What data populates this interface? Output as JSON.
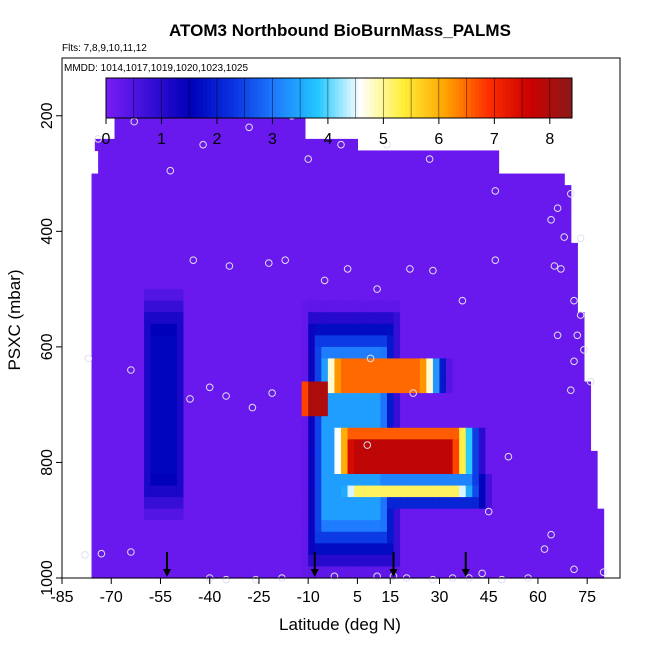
{
  "chart_data": {
    "type": "heatmap",
    "title": "ATOM3 Northbound BioBurnMass_PALMS",
    "flights_note": "Flts: 7,8,9,10,11,12",
    "dates_note": "MMDD: 1014,1017,1019,1020,1023,1025",
    "xlabel": "Latitude (deg N)",
    "ylabel": "PSXC (mbar)",
    "xlim": [
      -85,
      85
    ],
    "ylim": [
      1000,
      100
    ],
    "y_reversed": true,
    "x_ticks": [
      -85,
      -70,
      -55,
      -40,
      -25,
      -10,
      5,
      15,
      30,
      45,
      60,
      75
    ],
    "y_ticks": [
      200,
      400,
      600,
      800,
      1000
    ],
    "colorbar": {
      "range": [
        0,
        8.4
      ],
      "ticks": [
        0,
        1,
        2,
        3,
        4,
        5,
        6,
        7,
        8
      ],
      "colors": [
        "#7a1df5",
        "#3a0fd6",
        "#0000b8",
        "#0a33e0",
        "#1f7bff",
        "#22c8ff",
        "#ffffff",
        "#ffef3a",
        "#ffa500",
        "#ff3000",
        "#cc0000",
        "#8b1a1a"
      ]
    },
    "background_value": 0.2,
    "features": [
      {
        "lat_range": [
          -60,
          -48
        ],
        "p_range": [
          520,
          880
        ],
        "peak": 1.6
      },
      {
        "lat_range": [
          -9,
          16
        ],
        "p_range": [
          560,
          960
        ],
        "peak": 3.4
      },
      {
        "lat_range": [
          -12,
          -3
        ],
        "p_range": [
          660,
          720
        ],
        "peak": 8.0
      },
      {
        "lat_range": [
          -6,
          30
        ],
        "p_range": [
          620,
          680
        ],
        "peak": 6.5
      },
      {
        "lat_range": [
          -3,
          40
        ],
        "p_range": [
          740,
          830
        ],
        "peak": 7.8
      },
      {
        "lat_range": [
          -2,
          42
        ],
        "p_range": [
          830,
          870
        ],
        "peak": 5.2
      }
    ],
    "sample_points": [
      {
        "lat": -74,
        "p": 240
      },
      {
        "lat": -63,
        "p": 210
      },
      {
        "lat": -52,
        "p": 295
      },
      {
        "lat": -42,
        "p": 250
      },
      {
        "lat": -28,
        "p": 220
      },
      {
        "lat": -15,
        "p": 200
      },
      {
        "lat": -10,
        "p": 275
      },
      {
        "lat": 0,
        "p": 250
      },
      {
        "lat": 14,
        "p": 250
      },
      {
        "lat": 27,
        "p": 275
      },
      {
        "lat": 47,
        "p": 330
      },
      {
        "lat": 64,
        "p": 380
      },
      {
        "lat": 66,
        "p": 360
      },
      {
        "lat": 70,
        "p": 335
      },
      {
        "lat": 68,
        "p": 410
      },
      {
        "lat": 73,
        "p": 412
      },
      {
        "lat": -45,
        "p": 450
      },
      {
        "lat": -34,
        "p": 460
      },
      {
        "lat": -22,
        "p": 455
      },
      {
        "lat": -17,
        "p": 450
      },
      {
        "lat": -5,
        "p": 485
      },
      {
        "lat": 2,
        "p": 465
      },
      {
        "lat": 11,
        "p": 500
      },
      {
        "lat": 21,
        "p": 465
      },
      {
        "lat": 28,
        "p": 468
      },
      {
        "lat": 37,
        "p": 520
      },
      {
        "lat": 47,
        "p": 450
      },
      {
        "lat": 65,
        "p": 460
      },
      {
        "lat": 67,
        "p": 465
      },
      {
        "lat": 71,
        "p": 520
      },
      {
        "lat": 73,
        "p": 545
      },
      {
        "lat": 72,
        "p": 580
      },
      {
        "lat": 66,
        "p": 580
      },
      {
        "lat": 71,
        "p": 625
      },
      {
        "lat": 74,
        "p": 605
      },
      {
        "lat": -77,
        "p": 620
      },
      {
        "lat": -64,
        "p": 640
      },
      {
        "lat": -40,
        "p": 670
      },
      {
        "lat": -46,
        "p": 690
      },
      {
        "lat": -35,
        "p": 685
      },
      {
        "lat": -27,
        "p": 705
      },
      {
        "lat": -21,
        "p": 680
      },
      {
        "lat": 9,
        "p": 620
      },
      {
        "lat": 22,
        "p": 680
      },
      {
        "lat": 70,
        "p": 675
      },
      {
        "lat": 76,
        "p": 660
      },
      {
        "lat": 8,
        "p": 770
      },
      {
        "lat": 51,
        "p": 790
      },
      {
        "lat": 45,
        "p": 885
      },
      {
        "lat": 64,
        "p": 925
      },
      {
        "lat": 62,
        "p": 950
      },
      {
        "lat": -78,
        "p": 960
      },
      {
        "lat": -73,
        "p": 958
      },
      {
        "lat": -64,
        "p": 955
      },
      {
        "lat": -40,
        "p": 1000
      },
      {
        "lat": -35,
        "p": 1003
      },
      {
        "lat": -26,
        "p": 1003
      },
      {
        "lat": -18,
        "p": 1000
      },
      {
        "lat": -2,
        "p": 997
      },
      {
        "lat": 11,
        "p": 997
      },
      {
        "lat": 16,
        "p": 997
      },
      {
        "lat": 20,
        "p": 1000
      },
      {
        "lat": 28,
        "p": 1003
      },
      {
        "lat": 34,
        "p": 1000
      },
      {
        "lat": 39,
        "p": 1000
      },
      {
        "lat": 43,
        "p": 992
      },
      {
        "lat": 49,
        "p": 1003
      },
      {
        "lat": 57,
        "p": 1000
      },
      {
        "lat": 71,
        "p": 985
      },
      {
        "lat": 80,
        "p": 990
      }
    ],
    "arrows_lat": [
      -53,
      -8,
      16,
      38
    ]
  }
}
